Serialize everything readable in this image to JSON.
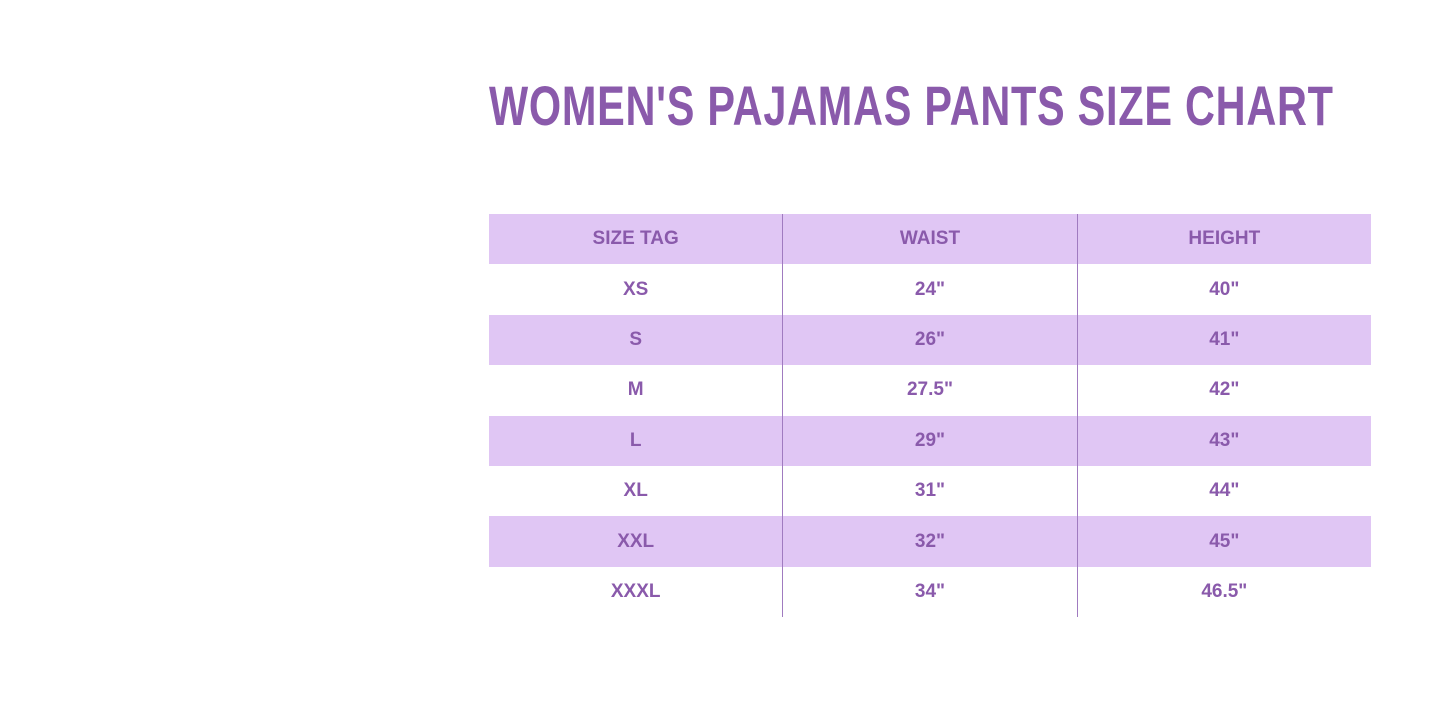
{
  "title": "WOMEN'S PAJAMAS PANTS SIZE CHART",
  "colors": {
    "title": "#8a5aab",
    "band": "#e0c6f4",
    "divider": "#a07bc0"
  },
  "table": {
    "headers": [
      "SIZE TAG",
      "WAIST",
      "HEIGHT"
    ],
    "rows": [
      [
        "XS",
        "24\"",
        "40\""
      ],
      [
        "S",
        "26\"",
        "41\""
      ],
      [
        "M",
        "27.5\"",
        "42\""
      ],
      [
        "L",
        "29\"",
        "43\""
      ],
      [
        "XL",
        "31\"",
        "44\""
      ],
      [
        "XXL",
        "32\"",
        "45\""
      ],
      [
        "XXXL",
        "34\"",
        "46.5\""
      ]
    ]
  }
}
